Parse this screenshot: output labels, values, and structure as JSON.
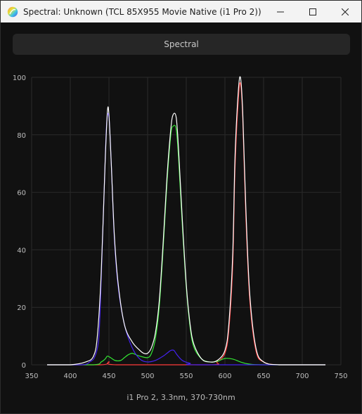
{
  "window": {
    "title": "Spectral: Unknown (TCL 85X955 Movie Native (i1 Pro 2))"
  },
  "tab": {
    "label": "Spectral"
  },
  "caption": "i1 Pro 2, 3.3nm, 370-730nm",
  "colors": {
    "white": "#ffffff",
    "red": "#ff3b3b",
    "green": "#33e633",
    "blue": "#4422ee",
    "grid": "#2a2a2a",
    "axis_text": "#bdbdbd"
  },
  "chart_data": {
    "type": "line",
    "xlim": [
      350,
      750
    ],
    "ylim": [
      0,
      100
    ],
    "xticks": [
      350,
      400,
      450,
      500,
      550,
      600,
      650,
      700,
      750
    ],
    "yticks": [
      0,
      20,
      40,
      60,
      80,
      100
    ],
    "grid": true,
    "series": [
      {
        "color": "#ffffff",
        "x": [
          370,
          400,
          420,
          430,
          435,
          440,
          445,
          448,
          450,
          453,
          457,
          462,
          470,
          480,
          490,
          495,
          500,
          505,
          510,
          515,
          520,
          525,
          530,
          533,
          537,
          540,
          545,
          550,
          555,
          560,
          570,
          580,
          590,
          600,
          605,
          610,
          613,
          617,
          620,
          623,
          627,
          632,
          640,
          650,
          670,
          700,
          730
        ],
        "y": [
          0,
          0,
          1,
          3,
          10,
          32,
          70,
          88,
          87,
          70,
          45,
          28,
          14,
          8,
          5,
          4,
          4,
          6,
          11,
          22,
          42,
          65,
          82,
          87,
          86,
          75,
          50,
          28,
          14,
          7,
          2,
          1,
          1.5,
          5,
          14,
          38,
          72,
          94,
          100,
          88,
          55,
          25,
          6,
          1,
          0,
          0,
          0
        ]
      },
      {
        "color": "#ff3b3b",
        "x": [
          370,
          440,
          450,
          460,
          580,
          590,
          600,
          605,
          610,
          613,
          617,
          620,
          623,
          627,
          632,
          640,
          650,
          670,
          730
        ],
        "y": [
          0,
          0,
          1,
          0,
          0,
          1,
          4,
          12,
          34,
          68,
          91,
          98,
          86,
          52,
          23,
          5,
          1,
          0,
          0
        ]
      },
      {
        "color": "#33e633",
        "x": [
          370,
          430,
          440,
          445,
          448,
          452,
          458,
          465,
          470,
          475,
          480,
          485,
          490,
          500,
          505,
          510,
          515,
          520,
          525,
          530,
          533,
          537,
          540,
          545,
          550,
          555,
          560,
          570,
          580,
          590,
          600,
          610,
          620,
          630,
          650,
          730
        ],
        "y": [
          0,
          0,
          1,
          2,
          3,
          2.5,
          1.5,
          1.5,
          2.5,
          3.5,
          4,
          3.5,
          3,
          2.5,
          4,
          9,
          20,
          40,
          63,
          80,
          83,
          82,
          72,
          48,
          27,
          13,
          6,
          2,
          1,
          1.2,
          2.2,
          2,
          1,
          0.3,
          0,
          0
        ]
      },
      {
        "color": "#4422ee",
        "x": [
          370,
          415,
          425,
          432,
          437,
          440,
          444,
          447,
          450,
          453,
          457,
          462,
          470,
          480,
          490,
          500,
          510,
          520,
          525,
          530,
          534,
          538,
          545,
          555,
          565,
          730
        ],
        "y": [
          0,
          0,
          1,
          3,
          10,
          30,
          62,
          84,
          86,
          70,
          44,
          27,
          14,
          6,
          2,
          1,
          1.5,
          3,
          4,
          5,
          5,
          3.5,
          1.5,
          0.5,
          0,
          0
        ]
      }
    ]
  }
}
